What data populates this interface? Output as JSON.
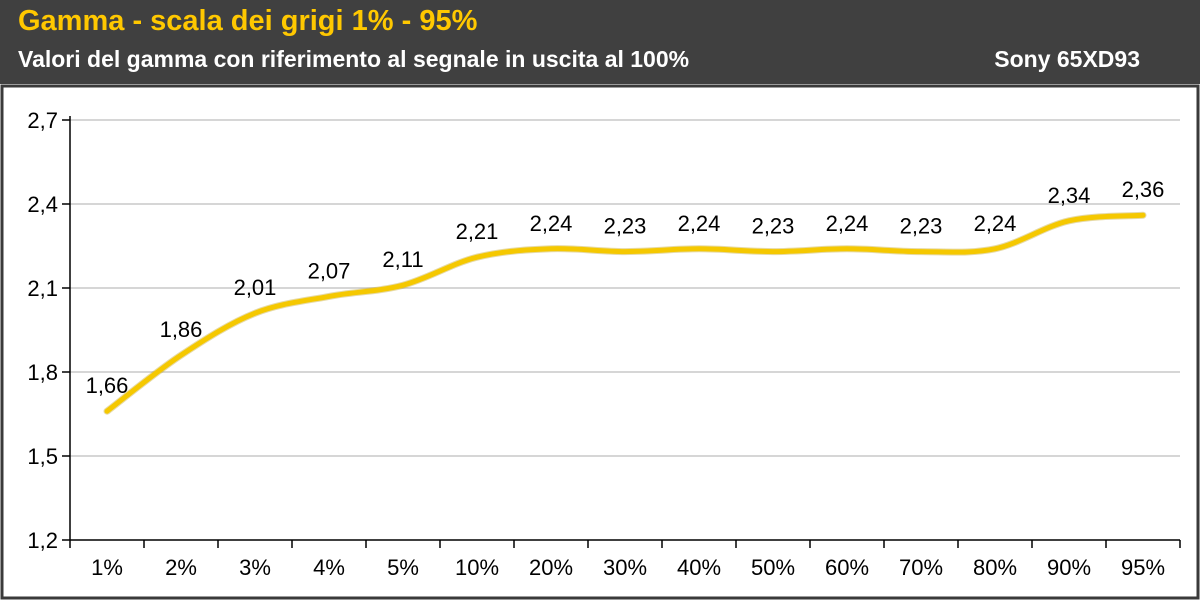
{
  "header": {
    "title": "Gamma - scala dei grigi 1% - 95%",
    "subtitle": "Valori del gamma con riferimento al segnale in uscita al 100%",
    "model": "Sony 65XD93"
  },
  "colors": {
    "header_bg": "#404040",
    "title": "#ffc800",
    "line": "#f5c800",
    "grid": "#c8c8c8",
    "axis": "#000000"
  },
  "chart_data": {
    "type": "line",
    "title": "Gamma - scala dei grigi 1% - 95%",
    "subtitle": "Valori del gamma con riferimento al segnale in uscita al 100%",
    "categories": [
      "1%",
      "2%",
      "3%",
      "4%",
      "5%",
      "10%",
      "20%",
      "30%",
      "40%",
      "50%",
      "60%",
      "70%",
      "80%",
      "90%",
      "95%"
    ],
    "series": [
      {
        "values": [
          1.66,
          1.86,
          2.01,
          2.07,
          2.11,
          2.21,
          2.24,
          2.23,
          2.24,
          2.23,
          2.24,
          2.23,
          2.24,
          2.34,
          2.36
        ],
        "labels": [
          "1,66",
          "1,86",
          "2,01",
          "2,07",
          "2,11",
          "2,21",
          "2,24",
          "2,23",
          "2,24",
          "2,23",
          "2,24",
          "2,23",
          "2,24",
          "2,34",
          "2,36"
        ]
      }
    ],
    "yticks": [
      "1,2",
      "1,5",
      "1,8",
      "2,1",
      "2,4",
      "2,7"
    ],
    "ytick_values": [
      1.2,
      1.5,
      1.8,
      2.1,
      2.4,
      2.7
    ],
    "ylim": [
      1.2,
      2.7
    ],
    "grid": true,
    "legend": "none",
    "smooth": true
  }
}
